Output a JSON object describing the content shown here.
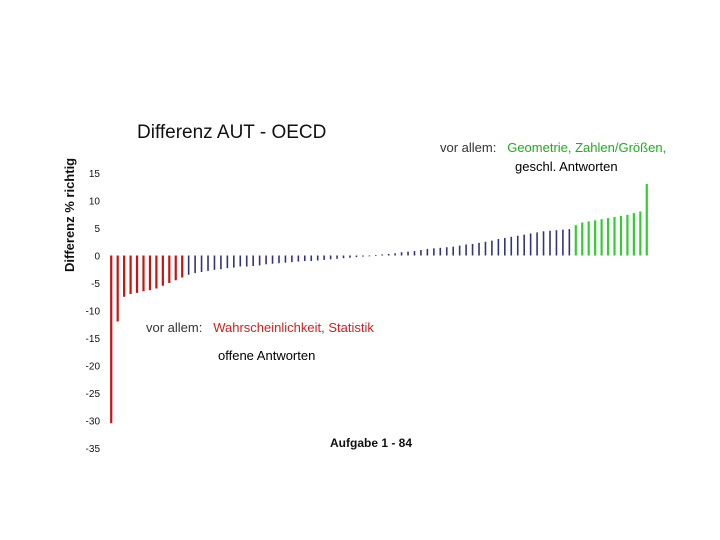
{
  "chart_data": {
    "type": "bar",
    "title": "Differenz AUT - OECD",
    "ylabel": "Differenz % richtig",
    "xlabel": "Aufgabe 1 - 84",
    "ylim": [
      -35,
      15
    ],
    "yticks": [
      15,
      10,
      5,
      0,
      -5,
      -10,
      -15,
      -20,
      -25,
      -30,
      -35
    ],
    "series_colors": {
      "negative_highlight": "#cc1111",
      "middle": "#33337a",
      "positive_highlight": "#33cc33"
    },
    "values": [
      -30.5,
      -12.0,
      -7.5,
      -7.0,
      -6.8,
      -6.5,
      -6.3,
      -6.0,
      -5.5,
      -5.0,
      -4.5,
      -4.0,
      -3.5,
      -3.2,
      -3.0,
      -2.8,
      -2.6,
      -2.5,
      -2.3,
      -2.2,
      -2.0,
      -2.0,
      -1.9,
      -1.8,
      -1.6,
      -1.5,
      -1.4,
      -1.3,
      -1.2,
      -1.1,
      -1.0,
      -1.0,
      -0.9,
      -0.8,
      -0.7,
      -0.6,
      -0.5,
      -0.4,
      -0.3,
      -0.2,
      -0.1,
      0.1,
      0.2,
      0.3,
      0.4,
      0.6,
      0.7,
      0.8,
      1.0,
      1.2,
      1.3,
      1.4,
      1.5,
      1.6,
      1.8,
      2.0,
      2.1,
      2.3,
      2.5,
      2.7,
      3.0,
      3.2,
      3.4,
      3.6,
      3.8,
      4.0,
      4.2,
      4.4,
      4.5,
      4.6,
      4.7,
      4.8,
      5.5,
      6.0,
      6.2,
      6.4,
      6.6,
      6.8,
      7.0,
      7.2,
      7.4,
      7.7,
      8.0,
      13.0
    ],
    "n_red": 12,
    "n_green": 12
  },
  "annotations": {
    "top_right_prefix": "vor allem:",
    "top_right_line1": "Geometrie, Zahlen/Größen,",
    "top_right_line2": "geschl. Antworten",
    "bottom_prefix": "vor allem:",
    "bottom_line1a": "Wahrscheinlichkeit,",
    "bottom_line1b": "Statistik",
    "bottom_line2": "offene Antworten"
  }
}
